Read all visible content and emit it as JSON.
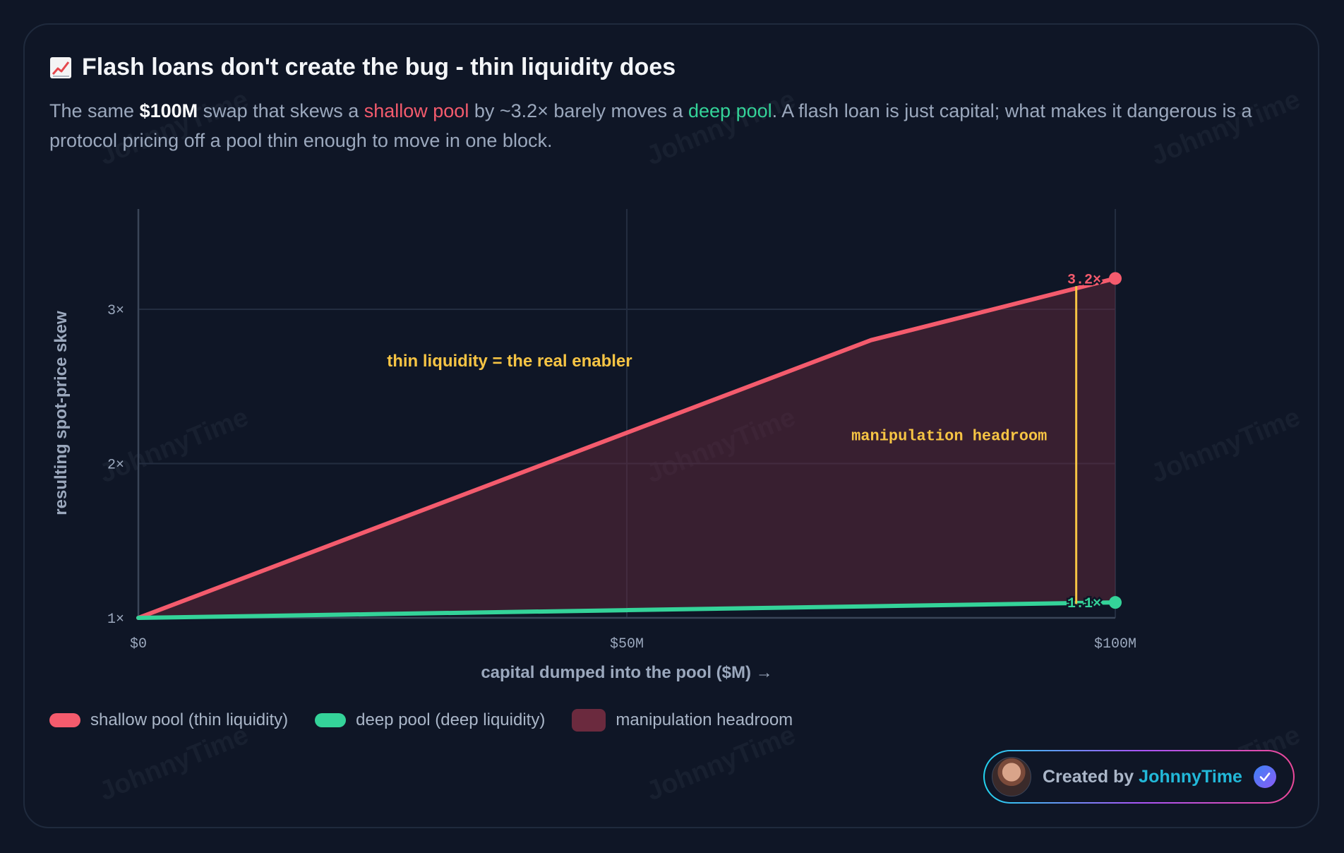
{
  "title": "Flash loans don't create the bug - thin liquidity does",
  "title_icon": "chart-increasing-icon",
  "subtitle": {
    "p1": "The same ",
    "amount": "$100M",
    "p2": " swap that skews a ",
    "shallow": "shallow pool",
    "p3": " by ~3.2× barely moves a ",
    "deep": "deep pool",
    "p4": ". A flash loan is just capital; what makes it dangerous is a protocol pricing off a pool thin enough to move in one block."
  },
  "watermark": "JohnnyTime",
  "chart_data": {
    "type": "line",
    "xlabel": "capital dumped into the pool ($M) →",
    "ylabel": "resulting spot-price skew",
    "xlim": [
      0,
      100
    ],
    "ylim": [
      1,
      3.65
    ],
    "x_ticks": [
      {
        "value": 0,
        "label": "$0"
      },
      {
        "value": 50,
        "label": "$50M"
      },
      {
        "value": 100,
        "label": "$100M"
      }
    ],
    "y_ticks": [
      {
        "value": 1,
        "label": "1×"
      },
      {
        "value": 2,
        "label": "2×"
      },
      {
        "value": 3,
        "label": "3×"
      }
    ],
    "grid": true,
    "series": [
      {
        "name": "shallow pool (thin liquidity)",
        "color": "#f45b6d",
        "points": [
          [
            0,
            1.0
          ],
          [
            25,
            1.6
          ],
          [
            50,
            2.2
          ],
          [
            75,
            2.8
          ],
          [
            100,
            3.2
          ]
        ],
        "end_label": "3.2×"
      },
      {
        "name": "deep pool (deep liquidity)",
        "color": "#34d399",
        "points": [
          [
            0,
            1.0
          ],
          [
            25,
            1.025
          ],
          [
            50,
            1.05
          ],
          [
            75,
            1.075
          ],
          [
            100,
            1.1
          ]
        ],
        "end_label": "1.1×"
      }
    ],
    "area": {
      "name": "manipulation headroom",
      "color": "#6b2a3e"
    },
    "annotations": [
      {
        "text": "thin liquidity = the real enabler",
        "x": 38,
        "y": 2.63,
        "color": "#f6c444"
      },
      {
        "text": "manipulation headroom",
        "x": 83,
        "y": 2.15,
        "color": "#f6c444"
      }
    ],
    "headroom_bracket": {
      "x": 96,
      "y_from": 1.09,
      "y_to": 3.15,
      "color": "#f6c444"
    }
  },
  "legend": [
    {
      "label": "shallow pool (thin liquidity)",
      "color": "#f45b6d",
      "shape": "pill"
    },
    {
      "label": "deep pool (deep liquidity)",
      "color": "#34d399",
      "shape": "pill"
    },
    {
      "label": "manipulation headroom",
      "color": "#6b2a3e",
      "shape": "box"
    }
  ],
  "badge": {
    "prefix": "Created by ",
    "name": "JohnnyTime",
    "avatar": "avatar-photo",
    "verified_icon": "verified-check-icon"
  }
}
